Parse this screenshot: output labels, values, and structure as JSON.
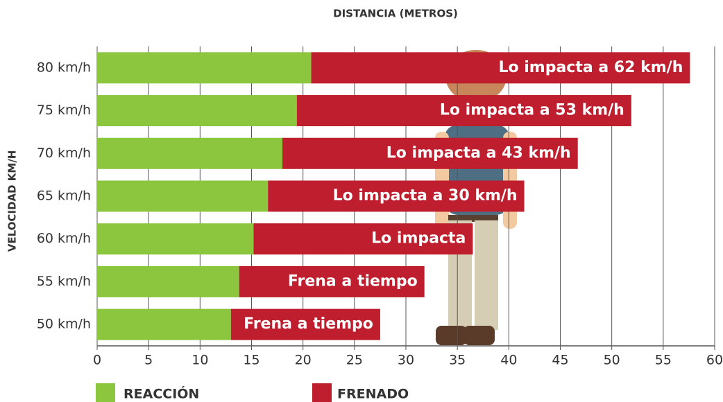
{
  "chart_data": {
    "type": "stacked-bar-horizontal",
    "title": "DISTANCIA (METROS)",
    "y_label": "VELOCIDAD KM/H",
    "categories": [
      "80 km/h",
      "75 km/h",
      "70 km/h",
      "65 km/h",
      "60 km/h",
      "55 km/h",
      "50 km/h"
    ],
    "series": [
      {
        "name": "REACCIÓN",
        "color": "#8cc63f",
        "values": [
          20.8,
          19.4,
          18.0,
          16.6,
          15.2,
          13.8,
          13.0
        ]
      },
      {
        "name": "FRENADO",
        "color": "#be1e2d",
        "values": [
          36.8,
          32.5,
          28.7,
          24.9,
          21.3,
          18.0,
          14.5
        ]
      }
    ],
    "bar_labels": [
      "Lo impacta a 62 km/h",
      "Lo impacta a 53 km/h",
      "Lo impacta a 43 km/h",
      "Lo impacta a 30 km/h",
      "Lo impacta",
      "Frena a tiempo",
      "Frena a tiempo"
    ],
    "xlim": [
      0,
      60
    ],
    "xticks": [
      0,
      5,
      10,
      15,
      20,
      25,
      30,
      35,
      40,
      45,
      50,
      55,
      60
    ],
    "grid": true
  }
}
